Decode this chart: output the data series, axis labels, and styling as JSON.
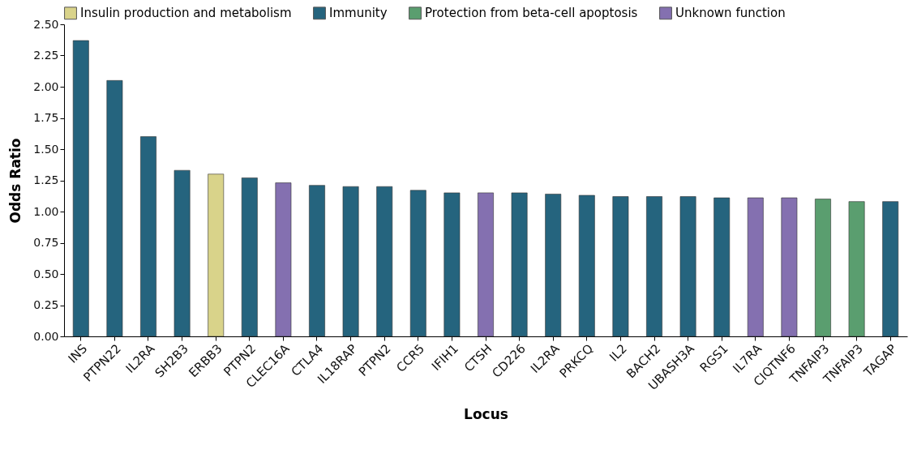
{
  "chart_data": {
    "type": "bar",
    "xlabel": "Locus",
    "ylabel": "Odds Ratio",
    "categories": [
      "INS",
      "PTPN22",
      "IL2RA",
      "SH2B3",
      "ERBB3",
      "PTPN2",
      "CLEC16A",
      "CTLA4",
      "IL18RAP",
      "PTPN2",
      "CCR5",
      "IFIH1",
      "CTSH",
      "CD226",
      "IL2RA",
      "PRKCQ",
      "IL2",
      "BACH2",
      "UBASH3A",
      "RGS1",
      "IL7RA",
      "CIQTNF6",
      "TNFAIP3",
      "TNFAIP3",
      "TAGAP"
    ],
    "series": [
      {
        "name": "Insulin production and metabolism",
        "color": "#d9d38a",
        "values": [
          null,
          null,
          null,
          null,
          1.3,
          null,
          null,
          null,
          null,
          null,
          null,
          null,
          null,
          null,
          null,
          null,
          null,
          null,
          null,
          null,
          null,
          null,
          null,
          null,
          null
        ]
      },
      {
        "name": "Immunity",
        "color": "#25647e",
        "values": [
          2.37,
          2.05,
          1.6,
          1.33,
          null,
          1.27,
          null,
          1.21,
          1.2,
          1.2,
          1.17,
          1.15,
          null,
          1.15,
          1.14,
          1.13,
          1.12,
          1.12,
          1.12,
          1.11,
          null,
          null,
          null,
          null,
          1.08
        ]
      },
      {
        "name": "Protection from beta-cell apoptosis",
        "color": "#5a9e6f",
        "values": [
          null,
          null,
          null,
          null,
          null,
          null,
          null,
          null,
          null,
          null,
          null,
          null,
          null,
          null,
          null,
          null,
          null,
          null,
          null,
          null,
          null,
          null,
          1.1,
          1.08,
          null
        ]
      },
      {
        "name": "Unknown function",
        "color": "#8470b0",
        "values": [
          null,
          null,
          null,
          null,
          null,
          null,
          1.23,
          null,
          null,
          null,
          null,
          null,
          1.15,
          null,
          null,
          null,
          null,
          null,
          null,
          null,
          1.11,
          1.11,
          null,
          null,
          null
        ]
      }
    ],
    "ylim": [
      0,
      2.5
    ],
    "yticks": [
      {
        "value": 0,
        "label": "0.00"
      },
      {
        "value": 0.25,
        "label": "0.25"
      },
      {
        "value": 0.5,
        "label": "0.50"
      },
      {
        "value": 0.75,
        "label": "0.75"
      },
      {
        "value": 1,
        "label": "1.00"
      },
      {
        "value": 1.25,
        "label": "1.25"
      },
      {
        "value": 1.5,
        "label": "1.50"
      },
      {
        "value": 1.75,
        "label": "1.75"
      },
      {
        "value": 2,
        "label": "2.00"
      },
      {
        "value": 2.25,
        "label": "2.25"
      },
      {
        "value": 2.5,
        "label": "2.50"
      }
    ],
    "grid": false,
    "legend": "top"
  }
}
